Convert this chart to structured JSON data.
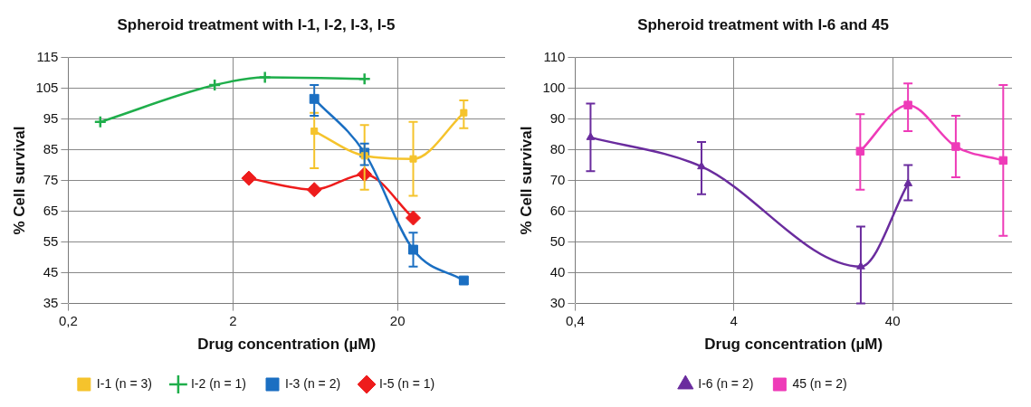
{
  "chart_data": [
    {
      "type": "line",
      "title": "Spheroid treatment with I-1, I-2, I-3, I-5",
      "xlabel": "Drug concentration (µM)",
      "ylabel": "% Cell survival",
      "log": "x",
      "grid": true,
      "legend": "bottom",
      "line_style": "solid",
      "xlim": [
        0.2,
        90
      ],
      "xticks": [
        {
          "value": 0.2,
          "label": "0,2"
        },
        2,
        20
      ],
      "ylim": [
        35,
        115
      ],
      "yticks": [
        35,
        45,
        55,
        65,
        75,
        85,
        95,
        105,
        115
      ],
      "series": [
        {
          "name": "I-1 (n = 3)",
          "color": "#f5c32c",
          "marker": "square",
          "x": [
            6.24,
            12.6,
            24.9,
            50.5
          ],
          "values": [
            91,
            83,
            82,
            97
          ],
          "errors": [
            [
              79,
              97
            ],
            [
              72,
              93
            ],
            [
              70,
              94
            ],
            [
              92,
              101
            ]
          ]
        },
        {
          "name": "I-2 (n = 1)",
          "color": "#1fae4b",
          "marker": "cross",
          "x": [
            0.313,
            1.55,
            3.13,
            12.6
          ],
          "values": [
            94,
            106,
            108.5,
            108
          ]
        },
        {
          "name": "I-3 (n = 2)",
          "color": "#1b6fc2",
          "marker": "square",
          "x": [
            6.24,
            12.6,
            24.9,
            50.5
          ],
          "values": [
            101.5,
            84,
            52.5,
            42.5
          ],
          "errors": [
            [
              96,
              106
            ],
            [
              80,
              87
            ],
            [
              47,
              58
            ],
            [
              41.5,
              43.5
            ]
          ]
        },
        {
          "name": "I-5 (n = 1)",
          "color": "#ee1c1c",
          "marker": "diamond",
          "x": [
            2.5,
            6.24,
            12.6,
            24.9
          ],
          "values": [
            75.7,
            72,
            77,
            62.8
          ]
        }
      ]
    },
    {
      "type": "line",
      "title": "Spheroid treatment with I-6 and 45",
      "xlabel": "Drug concentration (µM)",
      "ylabel": "% Cell survival",
      "log": "x",
      "grid": true,
      "legend": "bottom",
      "line_style": "solid",
      "xlim": [
        0.4,
        226
      ],
      "xticks": [
        {
          "value": 0.4,
          "label": "0,4"
        },
        4,
        40
      ],
      "ylim": [
        30,
        110
      ],
      "yticks": [
        30,
        40,
        50,
        60,
        70,
        80,
        90,
        100,
        110
      ],
      "series": [
        {
          "name": "I-6 (n = 2)",
          "color": "#6a2c9e",
          "marker": "triangle",
          "x": [
            0.5,
            2.5,
            25.2,
            50.1
          ],
          "values": [
            84,
            74.5,
            42,
            69
          ],
          "errors": [
            [
              73,
              95
            ],
            [
              65.5,
              82.5
            ],
            [
              30,
              55
            ],
            [
              63.5,
              75
            ]
          ]
        },
        {
          "name": "45 (n = 2)",
          "color": "#ee3bb8",
          "marker": "square",
          "x": [
            25,
            50,
            100,
            199
          ],
          "values": [
            79.5,
            94.5,
            81,
            76.5
          ],
          "errors": [
            [
              67,
              91.5
            ],
            [
              86,
              101.5
            ],
            [
              71,
              91
            ],
            [
              52,
              101
            ]
          ]
        }
      ]
    }
  ]
}
